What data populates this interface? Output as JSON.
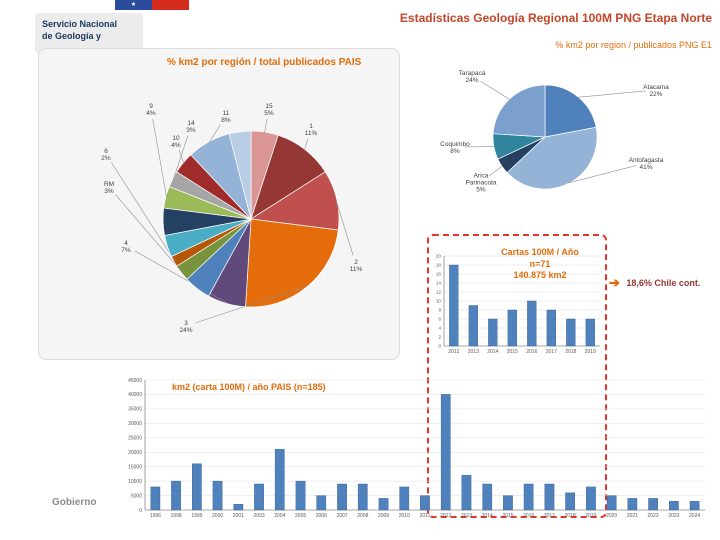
{
  "slide": {
    "title": "Estadísticas Geología Regional 100M PNG Etapa Norte"
  },
  "logo": {
    "line1": "Servicio Nacional",
    "line2": "de Geología y"
  },
  "footer": {
    "gobierno": "Gobierno"
  },
  "annotation": {
    "arrow": "➔",
    "text": "18,6% Chile cont."
  },
  "colors": {
    "accent_orange": "#E36C0A",
    "title_red": "#C4452A",
    "bar_blue": "#4F81BD",
    "highlight_red": "#E8342A",
    "flag_blue": "#2A4B9B",
    "flag_red": "#D52B1E",
    "logo_navy": "#17375E"
  },
  "chart_data": [
    {
      "id": "pie-pais",
      "type": "pie",
      "title": "% km2 por región / total publicados PAIS",
      "slices": [
        {
          "label": "15",
          "pct": 5,
          "color": "#D99694"
        },
        {
          "label": "1",
          "pct": 11,
          "color": "#953735"
        },
        {
          "label": "2",
          "pct": 11,
          "color": "#C0504D"
        },
        {
          "label": "3",
          "pct": 24,
          "color": "#E46C0A"
        },
        {
          "label": "4",
          "pct": 7,
          "color": "#604A7B"
        },
        {
          "label": "",
          "pct": 5,
          "color": "#4F81BD"
        },
        {
          "label": "RM",
          "pct": 3,
          "color": "#77933C"
        },
        {
          "label": "6",
          "pct": 2,
          "color": "#B65708"
        },
        {
          "label": "",
          "pct": 4,
          "color": "#4BACC6"
        },
        {
          "label": "",
          "pct": 5,
          "color": "#244062"
        },
        {
          "label": "9",
          "pct": 4,
          "color": "#9BBB59"
        },
        {
          "label": "14",
          "pct": 3,
          "color": "#A6A6A6"
        },
        {
          "label": "10",
          "pct": 4,
          "color": "#A02B2B"
        },
        {
          "label": "11",
          "pct": 8,
          "color": "#95B3D7"
        },
        {
          "label": "",
          "pct": 4,
          "color": "#B9CDE5"
        }
      ],
      "note": "slices with empty label carry no visible data label in the source image"
    },
    {
      "id": "pie-png-e1",
      "type": "pie",
      "title": "% km2 por region / publicados PNG E1",
      "slices": [
        {
          "label": "Atacama",
          "pct": 22,
          "color": "#4F81BD"
        },
        {
          "label": "Antofagasta",
          "pct": 41,
          "color": "#95B3D7"
        },
        {
          "label": "Arica Parinacota",
          "pct": 5,
          "color": "#254061"
        },
        {
          "label": "Coquimbo",
          "pct": 8,
          "color": "#31859C"
        },
        {
          "label": "Tarapacá",
          "pct": 24,
          "color": "#7BA0CD"
        }
      ]
    },
    {
      "id": "bars-cartas-ano",
      "type": "bar",
      "title": "Cartas 100M / Año",
      "subtitle": "n=71",
      "subtitle2": "140.875 km2",
      "categories": [
        "2012",
        "2013",
        "2014",
        "2015",
        "2016",
        "2017",
        "2018",
        "2019"
      ],
      "values": [
        18,
        9,
        6,
        8,
        10,
        8,
        6,
        6
      ],
      "ylim": [
        0,
        20
      ],
      "ystep": 2,
      "bar_color": "#4F81BD"
    },
    {
      "id": "bars-km2-pais",
      "type": "bar",
      "title": "km2 (carta 100M) / año PAIS (n=185)",
      "categories": [
        "1996",
        "1998",
        "1999",
        "2000",
        "2001",
        "2003",
        "2004",
        "2005",
        "2006",
        "2007",
        "2008",
        "2009",
        "2010",
        "2011",
        "2012",
        "2013",
        "2014",
        "2015",
        "2016",
        "2017",
        "2018",
        "2019",
        "2020",
        "2021",
        "2022",
        "2023",
        "2024"
      ],
      "values": [
        8000,
        10000,
        16000,
        10000,
        2000,
        9000,
        21000,
        10000,
        5000,
        9000,
        9000,
        4000,
        8000,
        5000,
        40000,
        12000,
        9000,
        5000,
        9000,
        9000,
        6000,
        8000,
        5000,
        4000,
        4000,
        3000,
        3000
      ],
      "ylim": [
        0,
        45000
      ],
      "ystep": 5000,
      "bar_color": "#4F81BD"
    }
  ]
}
